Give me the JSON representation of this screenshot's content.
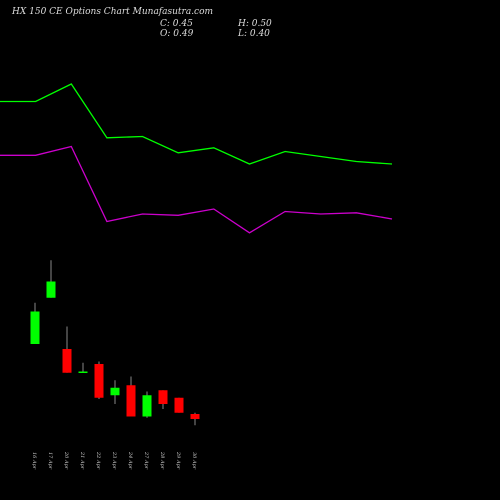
{
  "header": {
    "title": "HX  150  CE Options  Chart Munafasutra.com",
    "close": "C: 0.45",
    "high": "H: 0.50",
    "open": "O: 0.49",
    "low": "L: 0.40"
  },
  "chart_data": [
    {
      "type": "line",
      "series": [
        {
          "color": "#00ff00",
          "values": [
            2.99,
            2.99,
            3.13,
            2.7,
            2.71,
            2.58,
            2.62,
            2.49,
            2.59,
            2.55,
            2.51,
            2.49
          ]
        },
        {
          "color": "#cc00cc",
          "values": [
            2.56,
            2.56,
            2.63,
            2.03,
            2.09,
            2.08,
            2.13,
            1.94,
            2.11,
            2.09,
            2.1,
            2.05
          ]
        }
      ]
    },
    {
      "type": "candlestick",
      "categories": [
        "16 Apr",
        "17 Apr",
        "20 Apr",
        "21 Apr",
        "22 Apr",
        "23 Apr",
        "24 Apr",
        "27 Apr",
        "28 Apr",
        "29 Apr",
        "30 Apr"
      ],
      "open": [
        1.05,
        1.42,
        1.01,
        0.82,
        0.89,
        0.64,
        0.72,
        0.47,
        0.68,
        0.62,
        0.49
      ],
      "high": [
        1.38,
        1.72,
        1.19,
        0.9,
        0.91,
        0.76,
        0.79,
        0.67,
        0.68,
        0.62,
        0.5
      ],
      "low": [
        1.05,
        1.42,
        0.82,
        0.82,
        0.61,
        0.57,
        0.47,
        0.46,
        0.53,
        0.5,
        0.4
      ],
      "close": [
        1.31,
        1.55,
        0.82,
        0.83,
        0.62,
        0.7,
        0.47,
        0.64,
        0.57,
        0.5,
        0.45
      ],
      "up_color": "#00ff00",
      "down_color": "#ff0000"
    }
  ]
}
